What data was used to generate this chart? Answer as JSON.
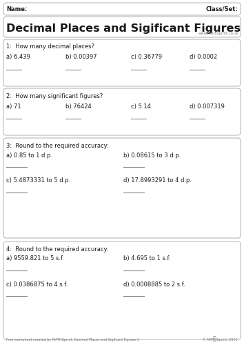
{
  "title": "Decimal Places and Sigificant Figures",
  "website": "www.mathsprint.co.uk",
  "name_label": "Name:",
  "class_label": "Class/Set:",
  "footer": "Free worksheet created by MATHSprint. Decimal Places and Sigifcant Figures:1",
  "footer_right": "© MATHSprint, 2013",
  "bg_color": "#ffffff",
  "box_edge_color": "#b0b0b0",
  "box_face_color": "#ffffff",
  "text_color": "#1a1a1a",
  "gray_text": "#777777",
  "line_color": "#888888",
  "sections": [
    {
      "number": "1:",
      "heading": "  How many decimal places?",
      "row1": [
        "a) 6.439",
        "b) 0.00397",
        "c) 0.36779",
        "d) 0.0002"
      ],
      "row2": null,
      "n_cols": 4
    },
    {
      "number": "2:",
      "heading": "  How many significant figures?",
      "row1": [
        "a) 71",
        "b) 76424",
        "c) 5.14",
        "d) 0.007319"
      ],
      "row2": null,
      "n_cols": 4
    },
    {
      "number": "3:",
      "heading": "  Round to the required accuracy:",
      "row1": [
        "a) 0.85 to 1 d.p.",
        "b) 0.08615 to 3 d.p."
      ],
      "row2": [
        "c) 5.4873331 to 5 d.p.",
        "d) 17.8993291 to 4 d.p."
      ],
      "n_cols": 2
    },
    {
      "number": "4:",
      "heading": "  Round to the required accuracy:",
      "row1": [
        "a) 9559.821 to 5 s.f.",
        "b) 4.695 to 1 s.f."
      ],
      "row2": [
        "c) 0.0386875 to 4 s.f.",
        "d) 0.0008885 to 2 s.f."
      ],
      "n_cols": 2
    }
  ]
}
